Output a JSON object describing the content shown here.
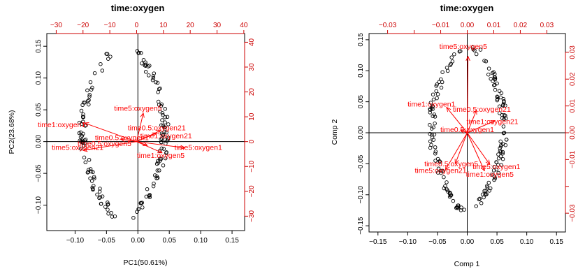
{
  "chart_data": [
    {
      "type": "scatter",
      "title": "time:oxygen",
      "xlabel": "PC1(50.61%)",
      "ylabel": "PC2(23.68%)",
      "xlim": [
        -0.145,
        0.17
      ],
      "ylim": [
        -0.14,
        0.17
      ],
      "x_ticks": [
        -0.1,
        -0.05,
        0.0,
        0.05,
        0.1,
        0.15
      ],
      "x_tick_labels": [
        "−0.10",
        "−0.05",
        "0.00",
        "0.05",
        "0.10",
        "0.15"
      ],
      "y_ticks": [
        -0.1,
        -0.05,
        0.0,
        0.05,
        0.1,
        0.15
      ],
      "y_tick_labels": [
        "−0.10",
        "−0.05",
        "0.00",
        "0.05",
        "0.10",
        "0.15"
      ],
      "top_lim": [
        -33.5,
        40.3
      ],
      "top_ticks": [
        -30,
        -20,
        -10,
        0,
        10,
        20,
        30,
        40
      ],
      "top_tick_labels": [
        "−30",
        "−20",
        "−10",
        "0",
        "10",
        "20",
        "30",
        "40"
      ],
      "right_lim": [
        -35.8,
        43.5
      ],
      "right_ticks": [
        -30,
        -20,
        -10,
        0,
        10,
        20,
        30,
        40
      ],
      "right_tick_labels": [
        "−30",
        "−20",
        "−10",
        "0",
        "10",
        "20",
        "30",
        "40"
      ],
      "arrow_color": "#ff0000",
      "arrows": [
        {
          "name": "time1:oxygen1",
          "x": -19.5,
          "y": 7.5
        },
        {
          "name": "time5:oxygen1",
          "x": 18.0,
          "y": -2.5
        },
        {
          "name": "time5:oxygen5",
          "x": 2.5,
          "y": 11.5
        },
        {
          "name": "time0.5:oxygen21",
          "x": 9.0,
          "y": 4.5
        },
        {
          "name": "time1:oxygen21",
          "x": 7.5,
          "y": 3.5
        },
        {
          "name": "time0.5:oxygen1",
          "x": -6.0,
          "y": 1.0
        },
        {
          "name": "time0.5:oxygen5",
          "x": 4.0,
          "y": -1.5
        },
        {
          "name": "time5:oxygen21",
          "x": -20.0,
          "y": -3.5
        },
        {
          "name": "time1:oxygen5",
          "x": 9.5,
          "y": -4.5
        }
      ],
      "arrow_labels": [
        {
          "text": "time1:oxygen1",
          "x": -28.0,
          "y": 6.6
        },
        {
          "text": "time5:oxygen5",
          "x": 0.5,
          "y": 13.2
        },
        {
          "text": "time0.5:oxygen21",
          "x": 7.5,
          "y": 5.3
        },
        {
          "text": "time1:oxygen21",
          "x": 11.0,
          "y": 2.1
        },
        {
          "text": "time0.5:oxygen1",
          "x": -5.5,
          "y": 1.4
        },
        {
          "text": "time0.5:oxygen5",
          "x": -12.0,
          "y": -1.0
        },
        {
          "text": "time5:oxygen21",
          "x": -22.0,
          "y": -2.6
        },
        {
          "text": "time5:oxygen1",
          "x": 23.0,
          "y": -2.6
        },
        {
          "text": "time1:oxygen5",
          "x": 9.0,
          "y": -5.8
        }
      ]
    },
    {
      "type": "scatter",
      "title": "time:oxygen",
      "xlabel": "Comp 1",
      "ylabel": "Comp 2",
      "xlim": [
        -0.165,
        0.165
      ],
      "ylim": [
        -0.16,
        0.16
      ],
      "x_ticks": [
        -0.15,
        -0.1,
        -0.05,
        0.0,
        0.05,
        0.1,
        0.15
      ],
      "x_tick_labels": [
        "−0.15",
        "−0.10",
        "−0.05",
        "0.00",
        "0.05",
        "0.10",
        "0.15"
      ],
      "y_ticks": [
        -0.15,
        -0.1,
        -0.05,
        0.0,
        0.05,
        0.1,
        0.15
      ],
      "y_tick_labels": [
        "−0.15",
        "−0.10",
        "−0.05",
        "0.00",
        "0.05",
        "0.10",
        "0.15"
      ],
      "top_lim": [
        -0.037,
        0.037
      ],
      "top_ticks": [
        -0.03,
        -0.02,
        -0.01,
        0.0,
        0.01,
        0.02,
        0.03
      ],
      "top_tick_labels": [
        "−0.03",
        "",
        "−0.01",
        "0.00",
        "0.01",
        "0.02",
        "0.03"
      ],
      "right_lim": [
        -0.037,
        0.037
      ],
      "right_ticks": [
        -0.03,
        -0.02,
        -0.01,
        0.0,
        0.01,
        0.02,
        0.03
      ],
      "right_tick_labels": [
        "−0.03",
        "",
        "−0.01",
        "0.00",
        "0.01",
        "0.02",
        "0.03"
      ],
      "arrow_color": "#ff0000",
      "arrows": [
        {
          "name": "time5:oxygen5",
          "x": 0.0003,
          "y": 0.0285
        },
        {
          "name": "time1:oxygen1",
          "x": -0.0078,
          "y": 0.0095
        },
        {
          "name": "time0.5:oxygen21",
          "x": 0.0035,
          "y": 0.0085
        },
        {
          "name": "time1:oxygen21",
          "x": 0.0105,
          "y": 0.0045
        },
        {
          "name": "time0.5:oxygen1",
          "x": -0.0025,
          "y": 0.001
        },
        {
          "name": "time0.5:oxygen5",
          "x": -0.0045,
          "y": -0.0115
        },
        {
          "name": "time5:oxygen21",
          "x": -0.0082,
          "y": -0.0138
        },
        {
          "name": "time5:oxygen1",
          "x": 0.0085,
          "y": -0.0118
        },
        {
          "name": "time1:oxygen5",
          "x": 0.0065,
          "y": -0.0142
        }
      ],
      "arrow_labels": [
        {
          "text": "time5:oxygen5",
          "x": -0.0015,
          "y": 0.032
        },
        {
          "text": "time1:oxygen1",
          "x": -0.0135,
          "y": 0.0105
        },
        {
          "text": "time0.5:oxygen21",
          "x": 0.0055,
          "y": 0.0085
        },
        {
          "text": "time1:oxygen21",
          "x": 0.0095,
          "y": 0.004
        },
        {
          "text": "time0.5:oxygen1",
          "x": 0.0,
          "y": 0.001
        },
        {
          "text": "time0.5:oxygen5",
          "x": -0.006,
          "y": -0.0118
        },
        {
          "text": "time5:oxygen21",
          "x": -0.01,
          "y": -0.0143
        },
        {
          "text": "time5:oxygen1",
          "x": 0.011,
          "y": -0.0128
        },
        {
          "text": "time1:oxygen5",
          "x": 0.0085,
          "y": -0.0157
        }
      ]
    }
  ]
}
